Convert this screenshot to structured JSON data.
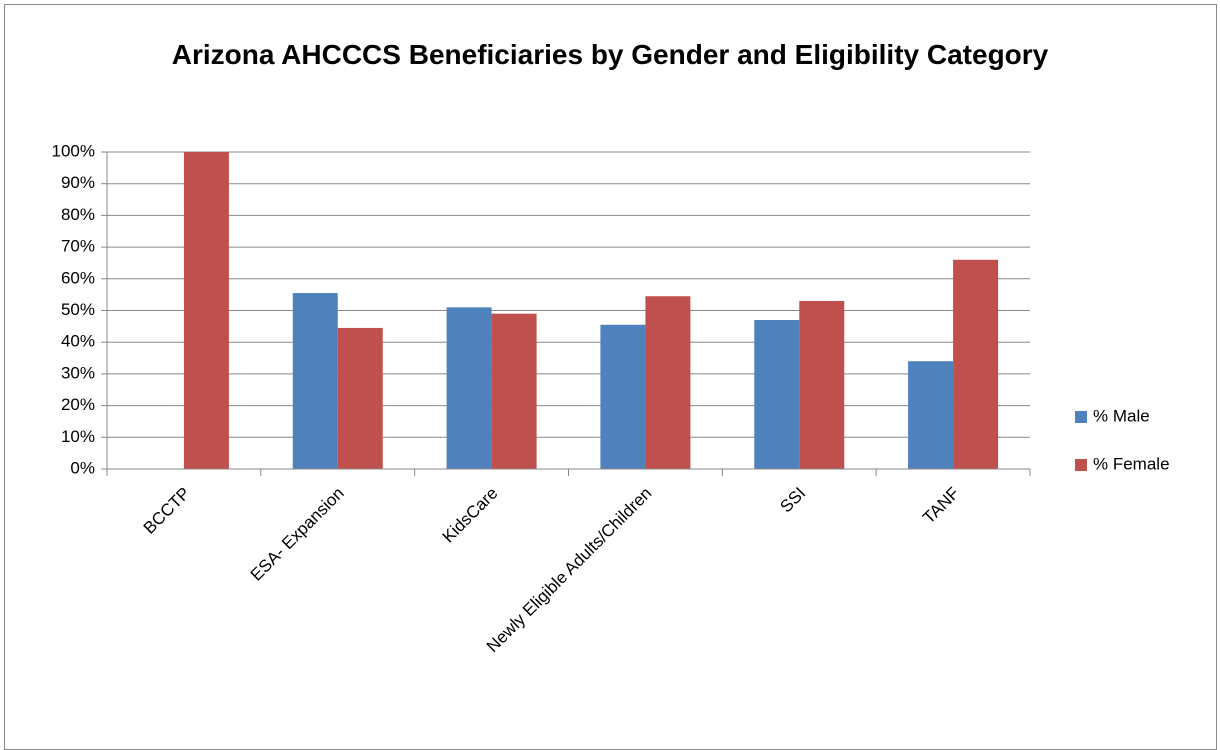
{
  "chart_data": {
    "type": "bar",
    "title": "Arizona AHCCCS Beneficiaries by Gender and Eligibility Category",
    "categories": [
      "BCCTP",
      "ESA- Expansion",
      "KidsCare",
      "Newly Eligible Adults/Children",
      "SSI",
      "TANF"
    ],
    "series": [
      {
        "name": "% Male",
        "color": "#4f81bd",
        "values": [
          0,
          55.5,
          51,
          45.5,
          47,
          34
        ]
      },
      {
        "name": "% Female",
        "color": "#c0504d",
        "values": [
          100,
          44.5,
          49,
          54.5,
          53,
          66
        ]
      }
    ],
    "ylim": [
      0,
      100
    ],
    "yticks": [
      {
        "value": 0,
        "label": "0%"
      },
      {
        "value": 10,
        "label": "10%"
      },
      {
        "value": 20,
        "label": "20%"
      },
      {
        "value": 30,
        "label": "30%"
      },
      {
        "value": 40,
        "label": "40%"
      },
      {
        "value": 50,
        "label": "50%"
      },
      {
        "value": 60,
        "label": "60%"
      },
      {
        "value": 70,
        "label": "70%"
      },
      {
        "value": 80,
        "label": "80%"
      },
      {
        "value": 90,
        "label": "90%"
      },
      {
        "value": 100,
        "label": "100%"
      }
    ],
    "grid": true,
    "legend": "right"
  }
}
